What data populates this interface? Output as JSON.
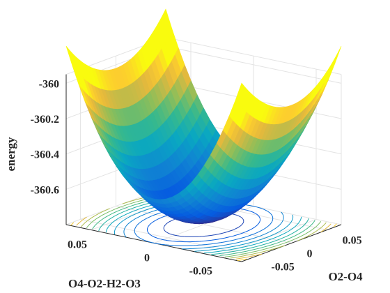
{
  "chart_data": {
    "type": "surface",
    "title": "",
    "xlabel": "O4-O2-H2-O3",
    "ylabel": "O2-O4",
    "zlabel": "energy",
    "xlim": [
      -0.07,
      0.07
    ],
    "ylim": [
      -0.07,
      0.07
    ],
    "zlim": [
      -360.8,
      -359.95
    ],
    "xticks": [
      {
        "value": 0.05,
        "label": "0.05"
      },
      {
        "value": 0,
        "label": "0"
      },
      {
        "value": -0.05,
        "label": "-0.05"
      }
    ],
    "yticks": [
      {
        "value": -0.05,
        "label": "-0.05"
      },
      {
        "value": 0,
        "label": "0"
      },
      {
        "value": 0.05,
        "label": "0.05"
      }
    ],
    "zticks": [
      {
        "value": -360.6,
        "label": "-360.6"
      },
      {
        "value": -360.4,
        "label": "-360.4"
      },
      {
        "value": -360.2,
        "label": "-360.2"
      },
      {
        "value": -360,
        "label": "-360"
      }
    ],
    "surface": {
      "x": [
        -0.07,
        -0.056,
        -0.042,
        -0.028,
        -0.014,
        0,
        0.014,
        0.028,
        0.042,
        0.056,
        0.07
      ],
      "y": [
        -0.07,
        -0.056,
        -0.042,
        -0.028,
        -0.014,
        0,
        0.014,
        0.028,
        0.042,
        0.056,
        0.07
      ],
      "minimum_energy": -360.78,
      "energy_at_x_edges": -360.02,
      "energy_at_y_edges": -360.55,
      "grid": false,
      "colormap": "parula",
      "shading": "interp",
      "contours_on_floor": true
    }
  }
}
